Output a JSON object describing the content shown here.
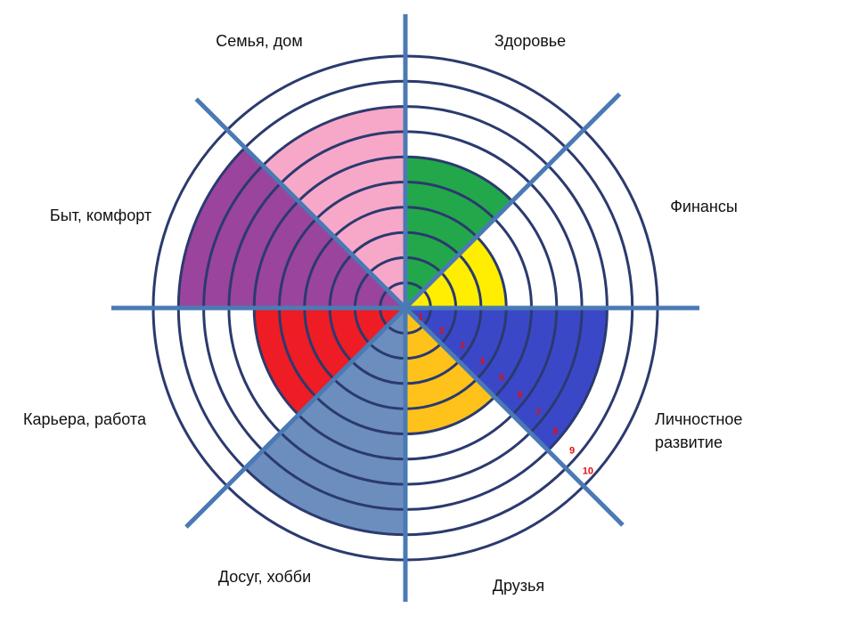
{
  "chart_data": {
    "type": "polar",
    "categories": [
      "Здоровье",
      "Финансы",
      "Личностное развитие",
      "Друзья",
      "Досуг, хобби",
      "Карьера, работа",
      "Быт, комфорт",
      "Семья, дом"
    ],
    "values": [
      6,
      4,
      8,
      5,
      9,
      6,
      9,
      8
    ],
    "colors": [
      "#22a84a",
      "#ffee00",
      "#3a48c8",
      "#ffc21a",
      "#6c8ebf",
      "#ee1c25",
      "#9a449e",
      "#f7a8c8"
    ],
    "rlim": [
      0,
      10
    ],
    "rticks": [
      1,
      2,
      3,
      4,
      5,
      6,
      7,
      8,
      9,
      10
    ]
  }
}
